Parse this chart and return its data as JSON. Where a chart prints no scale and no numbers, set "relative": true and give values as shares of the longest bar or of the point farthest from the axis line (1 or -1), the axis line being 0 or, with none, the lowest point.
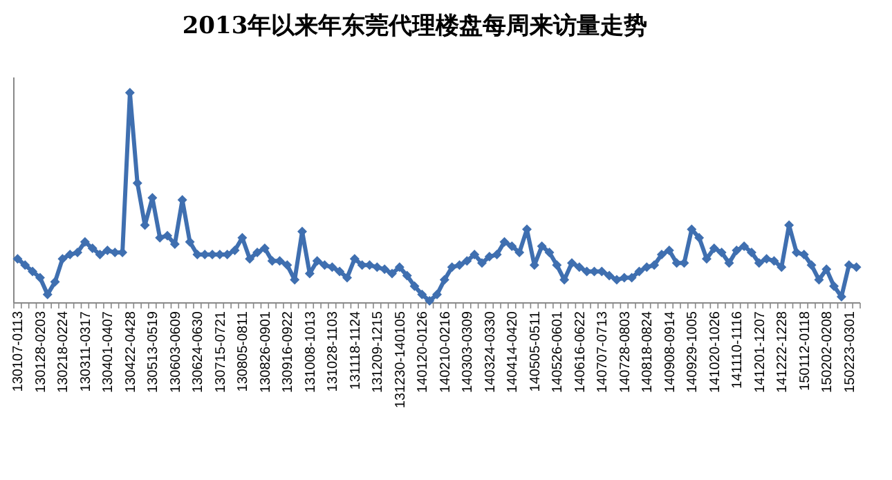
{
  "chart_data": {
    "type": "line",
    "title": "2013年以来年东莞代理楼盘每周来访量走势",
    "relative": true,
    "marker": "diamond",
    "line_style": "solid",
    "grid": false,
    "categories": [
      "130107-0113",
      null,
      null,
      "130128-0203",
      null,
      null,
      "130218-0224",
      null,
      null,
      "130311-0317",
      null,
      null,
      "130401-0407",
      null,
      null,
      "130422-0428",
      null,
      null,
      "130513-0519",
      null,
      null,
      "130603-0609",
      null,
      null,
      "130624-0630",
      null,
      null,
      "130715-0721",
      null,
      null,
      "130805-0811",
      null,
      null,
      "130826-0901",
      null,
      null,
      "130916-0922",
      null,
      null,
      "131008-1013",
      null,
      null,
      "131028-1103",
      null,
      null,
      "131118-1124",
      null,
      null,
      "131209-1215",
      null,
      null,
      "131230-140105",
      null,
      null,
      "140120-0126",
      null,
      null,
      "140210-0216",
      null,
      null,
      "140303-0309",
      null,
      null,
      "140324-0330",
      null,
      null,
      "140414-0420",
      null,
      null,
      "140505-0511",
      null,
      null,
      "140526-0601",
      null,
      null,
      "140616-0622",
      null,
      null,
      "140707-0713",
      null,
      null,
      "140728-0803",
      null,
      null,
      "140818-0824",
      null,
      null,
      "140908-0914",
      null,
      null,
      "140929-1005",
      null,
      null,
      "141020-1026",
      null,
      null,
      "141110-1116",
      null,
      null,
      "141201-1207",
      null,
      null,
      "141222-1228",
      null,
      null,
      "150112-0118",
      null,
      null,
      "150202-0208",
      null,
      null,
      "150223-0301",
      null
    ],
    "series": [
      {
        "color": "#3f6fb0",
        "values": [
          0.21,
          0.18,
          0.15,
          0.12,
          0.04,
          0.1,
          0.21,
          0.23,
          0.24,
          0.29,
          0.26,
          0.23,
          0.25,
          0.24,
          0.24,
          1,
          0.57,
          0.37,
          0.5,
          0.31,
          0.32,
          0.28,
          0.49,
          0.29,
          0.23,
          0.23,
          0.23,
          0.23,
          0.23,
          0.25,
          0.31,
          0.21,
          0.24,
          0.26,
          0.2,
          0.2,
          0.18,
          0.11,
          0.34,
          0.14,
          0.2,
          0.18,
          0.17,
          0.15,
          0.12,
          0.21,
          0.18,
          0.18,
          0.17,
          0.16,
          0.14,
          0.17,
          0.13,
          0.08,
          0.04,
          0.01,
          0.04,
          0.11,
          0.17,
          0.18,
          0.2,
          0.23,
          0.19,
          0.22,
          0.23,
          0.29,
          0.27,
          0.24,
          0.35,
          0.18,
          0.27,
          0.24,
          0.18,
          0.11,
          0.19,
          0.17,
          0.15,
          0.15,
          0.15,
          0.13,
          0.11,
          0.12,
          0.12,
          0.15,
          0.17,
          0.18,
          0.23,
          0.25,
          0.19,
          0.19,
          0.35,
          0.31,
          0.21,
          0.26,
          0.24,
          0.19,
          0.25,
          0.27,
          0.24,
          0.19,
          0.21,
          0.2,
          0.17,
          0.37,
          0.24,
          0.23,
          0.18,
          0.11,
          0.16,
          0.08,
          0.03,
          0.18,
          0.17
        ]
      }
    ]
  }
}
